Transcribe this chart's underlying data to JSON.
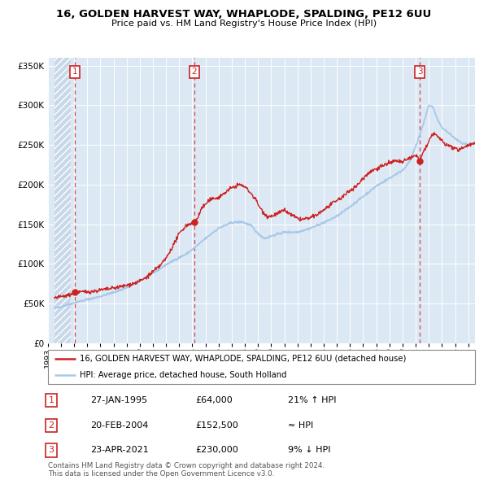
{
  "title1": "16, GOLDEN HARVEST WAY, WHAPLODE, SPALDING, PE12 6UU",
  "title2": "Price paid vs. HM Land Registry's House Price Index (HPI)",
  "legend_line1": "16, GOLDEN HARVEST WAY, WHAPLODE, SPALDING, PE12 6UU (detached house)",
  "legend_line2": "HPI: Average price, detached house, South Holland",
  "sale1_date": "27-JAN-1995",
  "sale1_price": 64000,
  "sale1_hpi": "21% ↑ HPI",
  "sale2_date": "20-FEB-2004",
  "sale2_price": 152500,
  "sale2_hpi": "≈ HPI",
  "sale3_date": "23-APR-2021",
  "sale3_price": 230000,
  "sale3_hpi": "9% ↓ HPI",
  "footer1": "Contains HM Land Registry data © Crown copyright and database right 2024.",
  "footer2": "This data is licensed under the Open Government Licence v3.0.",
  "hpi_color": "#a8c8e8",
  "price_color": "#cc2222",
  "dot_color": "#cc2222",
  "bg_color": "#dce8f4",
  "hatch_bg": "#c8d8e8",
  "ylim": [
    0,
    360000
  ],
  "sale1_year": 1995.07,
  "sale2_year": 2004.13,
  "sale3_year": 2021.31,
  "xmin": 1993.5,
  "xmax": 2025.5
}
